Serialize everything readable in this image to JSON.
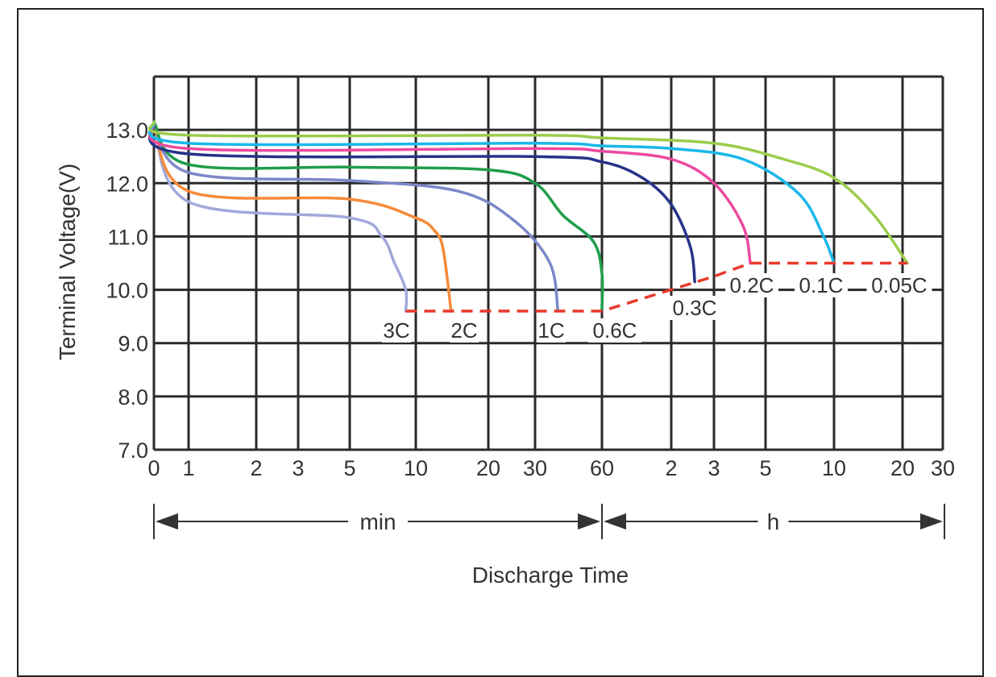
{
  "chart_data": {
    "type": "line",
    "xlabel": "Discharge Time",
    "ylabel": "Terminal Voltage(V)",
    "ylim": [
      7.0,
      14.0
    ],
    "y_ticks": [
      "7.0",
      "8.0",
      "9.0",
      "10.0",
      "11.0",
      "12.0",
      "13.0"
    ],
    "x_tick_labels": [
      "0",
      "1",
      "2",
      "3",
      "5",
      "10",
      "20",
      "30",
      "60",
      "2",
      "3",
      "5",
      "10",
      "20",
      "30"
    ],
    "x_scale": "log (minutes 1–60, then hours 1–30)",
    "time_ranges": [
      {
        "label": "min"
      },
      {
        "label": "h"
      }
    ],
    "grid": true,
    "series": [
      {
        "name": "3C",
        "color": "#a2a8db",
        "x": [
          "0 min",
          "1 min",
          "5 min",
          "7 min",
          "8 min",
          "9 min",
          "9 min"
        ],
        "y": [
          13.15,
          11.65,
          11.35,
          11.0,
          10.5,
          10.0,
          9.6
        ]
      },
      {
        "name": "2C",
        "color": "#f58b3a",
        "x": [
          "0 min",
          "1 min",
          "5 min",
          "10 min",
          "12 min",
          "13 min",
          "14 min"
        ],
        "y": [
          13.15,
          11.85,
          11.7,
          11.35,
          11.1,
          10.75,
          9.6
        ]
      },
      {
        "name": "1C",
        "color": "#7c88c9",
        "x": [
          "0 min",
          "1 min",
          "5 min",
          "15 min",
          "25 min",
          "35 min",
          "38 min"
        ],
        "y": [
          13.15,
          12.2,
          12.05,
          11.85,
          11.3,
          10.5,
          9.6
        ]
      },
      {
        "name": "0.6C",
        "color": "#1f9e4a",
        "x": [
          "0 min",
          "1 min",
          "5 min",
          "20 min",
          "30 min",
          "40 min",
          "55 min",
          "60 min",
          "60 min"
        ],
        "y": [
          13.15,
          12.35,
          12.3,
          12.25,
          12.0,
          11.4,
          10.9,
          10.3,
          9.65
        ]
      },
      {
        "name": "0.3C",
        "color": "#27338a",
        "x": [
          "0 min",
          "1 min",
          "30 min",
          "1 h",
          "1.5 h",
          "2 h",
          "2.4 h",
          "2.5 h"
        ],
        "y": [
          13.15,
          12.55,
          12.5,
          12.4,
          12.1,
          11.6,
          10.8,
          10.15
        ]
      },
      {
        "name": "0.2C",
        "color": "#ec4aa0",
        "x": [
          "0 min",
          "1 min",
          "30 min",
          "1 h",
          "2 h",
          "3 h",
          "4 h",
          "4.3 h"
        ],
        "y": [
          13.15,
          12.65,
          12.65,
          12.6,
          12.45,
          12.0,
          11.2,
          10.5
        ]
      },
      {
        "name": "0.1C",
        "color": "#1ab8ea",
        "x": [
          "0 min",
          "1 min",
          "30 min",
          "1 h",
          "2 h",
          "4 h",
          "7 h",
          "9 h",
          "10 h"
        ],
        "y": [
          13.15,
          12.75,
          12.75,
          12.7,
          12.65,
          12.45,
          11.8,
          11.0,
          10.5
        ]
      },
      {
        "name": "0.05C",
        "color": "#9ccd4c",
        "x": [
          "0 min",
          "1 min",
          "30 min",
          "1 h",
          "3 h",
          "6 h",
          "10 h",
          "15 h",
          "21 h"
        ],
        "y": [
          13.15,
          12.9,
          12.9,
          12.85,
          12.75,
          12.45,
          12.1,
          11.4,
          10.5
        ]
      }
    ],
    "cutoff_line": {
      "color": "#e8392b",
      "style": "dashed",
      "x": [
        "9 min",
        "60 min",
        "3 h",
        "4.3 h",
        "21 h"
      ],
      "y": [
        9.6,
        9.6,
        10.25,
        10.5,
        10.5
      ]
    },
    "annotations": [
      "3C",
      "2C",
      "1C",
      "0.6C",
      "0.3C",
      "0.2C",
      "0.1C",
      "0.05C"
    ]
  }
}
